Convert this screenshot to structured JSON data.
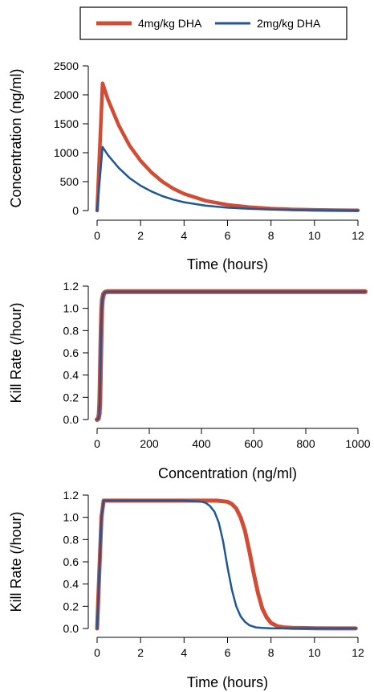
{
  "legend": {
    "entries": [
      {
        "label": "4mg/kg DHA",
        "color": "#d24b33"
      },
      {
        "label": "2mg/kg DHA",
        "color": "#1f5797"
      }
    ]
  },
  "chart_data": [
    {
      "type": "line",
      "title": "",
      "xlabel": "Time (hours)",
      "ylabel": "Concentration (ng/ml)",
      "xlim": [
        0,
        12
      ],
      "ylim": [
        0,
        2500
      ],
      "xticks": [
        0,
        2,
        4,
        6,
        8,
        10,
        12
      ],
      "yticks": [
        0,
        500,
        1000,
        1500,
        2000,
        2500
      ],
      "grid": false,
      "series": [
        {
          "name": "4mg/kg DHA",
          "color": "#d24b33",
          "x": [
            0,
            0.25,
            0.5,
            1,
            1.5,
            2,
            2.5,
            3,
            3.5,
            4,
            5,
            6,
            7,
            8,
            9,
            10,
            11,
            12
          ],
          "y": [
            0,
            2200,
            1920,
            1470,
            1120,
            860,
            660,
            500,
            380,
            290,
            170,
            100,
            60,
            35,
            20,
            12,
            7,
            4
          ]
        },
        {
          "name": "2mg/kg DHA",
          "color": "#1f5797",
          "x": [
            0,
            0.25,
            0.5,
            1,
            1.5,
            2,
            2.5,
            3,
            3.5,
            4,
            5,
            6,
            7,
            8,
            9,
            10,
            11,
            12
          ],
          "y": [
            0,
            1100,
            960,
            735,
            560,
            430,
            330,
            250,
            190,
            145,
            85,
            50,
            30,
            17,
            10,
            6,
            3,
            2
          ]
        }
      ]
    },
    {
      "type": "line",
      "title": "",
      "xlabel": "Concentration (ng/ml)",
      "ylabel": "Kill Rate (/hour)",
      "xlim": [
        0,
        1000
      ],
      "ylim": [
        0,
        1.2
      ],
      "xticks": [
        0,
        200,
        400,
        600,
        800,
        1000
      ],
      "yticks": [
        0.0,
        0.2,
        0.4,
        0.6,
        0.8,
        1.0,
        1.2
      ],
      "grid": false,
      "series": [
        {
          "name": "4mg/kg DHA",
          "color": "#d24b33",
          "x": [
            0,
            5,
            8,
            10,
            12,
            14,
            16,
            18,
            20,
            25,
            30,
            40,
            60,
            100,
            200,
            400,
            600,
            800,
            1000,
            1050
          ],
          "y": [
            0,
            0.01,
            0.05,
            0.15,
            0.35,
            0.6,
            0.85,
            1.0,
            1.08,
            1.13,
            1.145,
            1.15,
            1.15,
            1.15,
            1.15,
            1.15,
            1.15,
            1.15,
            1.15,
            1.15
          ]
        },
        {
          "name": "2mg/kg DHA",
          "color": "#1f5797",
          "x": [
            0,
            5,
            8,
            10,
            12,
            14,
            16,
            18,
            20,
            25,
            30,
            40,
            60,
            100,
            200,
            400,
            600,
            800,
            1000,
            1050
          ],
          "y": [
            0,
            0.01,
            0.05,
            0.15,
            0.35,
            0.6,
            0.85,
            1.0,
            1.08,
            1.13,
            1.145,
            1.15,
            1.15,
            1.15,
            1.15,
            1.15,
            1.15,
            1.15,
            1.15,
            1.15
          ]
        }
      ]
    },
    {
      "type": "line",
      "title": "",
      "xlabel": "Time (hours)",
      "ylabel": "Kill Rate (/hour)",
      "xlim": [
        0,
        12
      ],
      "ylim": [
        0,
        1.2
      ],
      "xticks": [
        0,
        2,
        4,
        6,
        8,
        10,
        12
      ],
      "yticks": [
        0.0,
        0.2,
        0.4,
        0.6,
        0.8,
        1.0,
        1.2
      ],
      "grid": false,
      "series": [
        {
          "name": "4mg/kg DHA",
          "color": "#d24b33",
          "x": [
            0,
            0.2,
            0.3,
            1,
            2,
            3,
            4,
            5,
            5.5,
            6,
            6.2,
            6.4,
            6.6,
            6.8,
            7,
            7.2,
            7.4,
            7.6,
            7.8,
            8,
            8.3,
            8.6,
            9,
            10,
            11,
            11.9
          ],
          "y": [
            0,
            1.0,
            1.15,
            1.15,
            1.15,
            1.15,
            1.15,
            1.15,
            1.15,
            1.14,
            1.12,
            1.08,
            1.0,
            0.88,
            0.7,
            0.5,
            0.32,
            0.18,
            0.1,
            0.05,
            0.02,
            0.01,
            0.005,
            0.002,
            0.001,
            0.001
          ]
        },
        {
          "name": "2mg/kg DHA",
          "color": "#1f5797",
          "x": [
            0,
            0.2,
            0.3,
            1,
            2,
            3,
            4,
            4.8,
            5,
            5.2,
            5.4,
            5.6,
            5.8,
            6,
            6.2,
            6.4,
            6.6,
            6.8,
            7,
            7.3,
            7.6,
            8,
            9,
            10,
            11,
            11.9
          ],
          "y": [
            0,
            1.0,
            1.15,
            1.15,
            1.15,
            1.15,
            1.15,
            1.14,
            1.13,
            1.1,
            1.05,
            0.95,
            0.78,
            0.55,
            0.35,
            0.2,
            0.11,
            0.06,
            0.03,
            0.01,
            0.005,
            0.002,
            0.001,
            0.001,
            0.001,
            0.001
          ]
        }
      ]
    }
  ]
}
